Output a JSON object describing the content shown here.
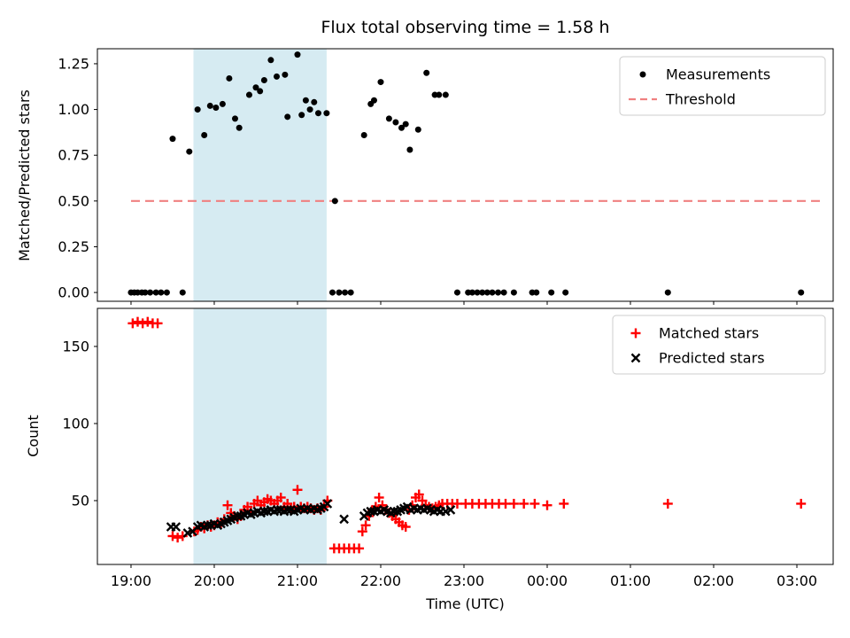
{
  "chart_data": [
    {
      "type": "scatter",
      "title": "Flux total observing time = 1.58 h",
      "ylabel": "Matched/Predicted stars",
      "xlim": [
        18.596,
        27.436
      ],
      "ylim": [
        -0.048,
        1.332
      ],
      "x_ticks": {
        "values": [
          19,
          20,
          21,
          22,
          23,
          24,
          25,
          26,
          27
        ],
        "labels": [
          "19:00",
          "20:00",
          "21:00",
          "22:00",
          "23:00",
          "00:00",
          "01:00",
          "02:00",
          "03:00"
        ],
        "show_labels": false
      },
      "y_ticks": {
        "values": [
          0,
          0.25,
          0.5,
          0.75,
          1.0,
          1.25
        ],
        "labels": [
          "0.00",
          "0.25",
          "0.50",
          "0.75",
          "1.00",
          "1.25"
        ]
      },
      "shaded_region": {
        "x0": 19.75,
        "x1": 21.35,
        "color": "#add8e6",
        "opacity": 0.5
      },
      "threshold": {
        "label": "Threshold",
        "value": 0.5,
        "x0": 19.0,
        "x1": 27.32,
        "color": "#f08080",
        "style": "dashed"
      },
      "legend_position": "upper right",
      "series": [
        {
          "name": "Measurements",
          "marker": "dot",
          "color": "#000000",
          "points": [
            [
              19.0,
              0.0
            ],
            [
              19.04,
              0.0
            ],
            [
              19.08,
              0.0
            ],
            [
              19.13,
              0.0
            ],
            [
              19.17,
              0.0
            ],
            [
              19.23,
              0.0
            ],
            [
              19.3,
              0.0
            ],
            [
              19.36,
              0.0
            ],
            [
              19.43,
              0.0
            ],
            [
              19.62,
              0.0
            ],
            [
              19.5,
              0.84
            ],
            [
              19.7,
              0.77
            ],
            [
              19.8,
              1.0
            ],
            [
              19.88,
              0.86
            ],
            [
              19.95,
              1.02
            ],
            [
              20.02,
              1.01
            ],
            [
              20.1,
              1.03
            ],
            [
              20.18,
              1.17
            ],
            [
              20.25,
              0.95
            ],
            [
              20.3,
              0.9
            ],
            [
              20.42,
              1.08
            ],
            [
              20.5,
              1.12
            ],
            [
              20.55,
              1.1
            ],
            [
              20.6,
              1.16
            ],
            [
              20.68,
              1.27
            ],
            [
              20.75,
              1.18
            ],
            [
              20.85,
              1.19
            ],
            [
              20.88,
              0.96
            ],
            [
              21.0,
              1.3
            ],
            [
              21.05,
              0.97
            ],
            [
              21.1,
              1.05
            ],
            [
              21.15,
              1.0
            ],
            [
              21.2,
              1.04
            ],
            [
              21.25,
              0.98
            ],
            [
              21.35,
              0.98
            ],
            [
              21.45,
              0.5
            ],
            [
              21.42,
              0.0
            ],
            [
              21.5,
              0.0
            ],
            [
              21.57,
              0.0
            ],
            [
              21.64,
              0.0
            ],
            [
              21.8,
              0.86
            ],
            [
              21.88,
              1.03
            ],
            [
              21.92,
              1.05
            ],
            [
              22.0,
              1.15
            ],
            [
              22.1,
              0.95
            ],
            [
              22.18,
              0.93
            ],
            [
              22.25,
              0.9
            ],
            [
              22.3,
              0.92
            ],
            [
              22.35,
              0.78
            ],
            [
              22.45,
              0.89
            ],
            [
              22.55,
              1.2
            ],
            [
              22.65,
              1.08
            ],
            [
              22.7,
              1.08
            ],
            [
              22.78,
              1.08
            ],
            [
              22.92,
              0.0
            ],
            [
              23.05,
              0.0
            ],
            [
              23.1,
              0.0
            ],
            [
              23.16,
              0.0
            ],
            [
              23.22,
              0.0
            ],
            [
              23.28,
              0.0
            ],
            [
              23.34,
              0.0
            ],
            [
              23.41,
              0.0
            ],
            [
              23.48,
              0.0
            ],
            [
              23.6,
              0.0
            ],
            [
              23.82,
              0.0
            ],
            [
              23.87,
              0.0
            ],
            [
              24.05,
              0.0
            ],
            [
              24.22,
              0.0
            ],
            [
              25.45,
              0.0
            ],
            [
              27.05,
              0.0
            ]
          ]
        }
      ]
    },
    {
      "type": "scatter",
      "xlabel": "Time (UTC)",
      "ylabel": "Count",
      "xlim": [
        18.596,
        27.436
      ],
      "ylim": [
        8.6,
        174.7
      ],
      "x_ticks": {
        "values": [
          19,
          20,
          21,
          22,
          23,
          24,
          25,
          26,
          27
        ],
        "labels": [
          "19:00",
          "20:00",
          "21:00",
          "22:00",
          "23:00",
          "00:00",
          "01:00",
          "02:00",
          "03:00"
        ],
        "show_labels": true
      },
      "y_ticks": {
        "values": [
          50,
          100,
          150
        ],
        "labels": [
          "50",
          "100",
          "150"
        ]
      },
      "shaded_region": {
        "x0": 19.75,
        "x1": 21.35,
        "color": "#add8e6",
        "opacity": 0.5
      },
      "legend_position": "upper right",
      "series": [
        {
          "name": "Matched stars",
          "marker": "plus",
          "color": "#ff0000",
          "points": [
            [
              19.02,
              165
            ],
            [
              19.08,
              166
            ],
            [
              19.14,
              165
            ],
            [
              19.2,
              166
            ],
            [
              19.26,
              165
            ],
            [
              19.32,
              165
            ],
            [
              19.5,
              27
            ],
            [
              19.56,
              26
            ],
            [
              19.62,
              27
            ],
            [
              19.76,
              30
            ],
            [
              19.8,
              31
            ],
            [
              19.84,
              33
            ],
            [
              19.88,
              32
            ],
            [
              19.92,
              34
            ],
            [
              19.96,
              33
            ],
            [
              20.0,
              34
            ],
            [
              20.04,
              36
            ],
            [
              20.08,
              35
            ],
            [
              20.12,
              38
            ],
            [
              20.16,
              47
            ],
            [
              20.2,
              42
            ],
            [
              20.24,
              40
            ],
            [
              20.28,
              38
            ],
            [
              20.32,
              40
            ],
            [
              20.36,
              44
            ],
            [
              20.4,
              46
            ],
            [
              20.44,
              43
            ],
            [
              20.48,
              48
            ],
            [
              20.52,
              50
            ],
            [
              20.56,
              47
            ],
            [
              20.6,
              49
            ],
            [
              20.64,
              51
            ],
            [
              20.68,
              50
            ],
            [
              20.72,
              48
            ],
            [
              20.76,
              50
            ],
            [
              20.8,
              52
            ],
            [
              20.84,
              46
            ],
            [
              20.88,
              48
            ],
            [
              20.92,
              45
            ],
            [
              20.96,
              46
            ],
            [
              21.0,
              57
            ],
            [
              21.04,
              46
            ],
            [
              21.08,
              45
            ],
            [
              21.12,
              46
            ],
            [
              21.16,
              45
            ],
            [
              21.2,
              44
            ],
            [
              21.24,
              45
            ],
            [
              21.28,
              44
            ],
            [
              21.32,
              46
            ],
            [
              21.36,
              50
            ],
            [
              21.44,
              19
            ],
            [
              21.5,
              19
            ],
            [
              21.56,
              19
            ],
            [
              21.62,
              19
            ],
            [
              21.68,
              19
            ],
            [
              21.74,
              19
            ],
            [
              21.78,
              30
            ],
            [
              21.82,
              34
            ],
            [
              21.86,
              40
            ],
            [
              21.9,
              44
            ],
            [
              21.94,
              46
            ],
            [
              21.98,
              52
            ],
            [
              22.02,
              47
            ],
            [
              22.06,
              44
            ],
            [
              22.1,
              42
            ],
            [
              22.14,
              40
            ],
            [
              22.18,
              38
            ],
            [
              22.22,
              36
            ],
            [
              22.26,
              34
            ],
            [
              22.3,
              33
            ],
            [
              22.34,
              44
            ],
            [
              22.38,
              47
            ],
            [
              22.42,
              52
            ],
            [
              22.46,
              54
            ],
            [
              22.5,
              50
            ],
            [
              22.54,
              47
            ],
            [
              22.58,
              46
            ],
            [
              22.62,
              45
            ],
            [
              22.66,
              46
            ],
            [
              22.7,
              47
            ],
            [
              22.74,
              48
            ],
            [
              22.8,
              48
            ],
            [
              22.86,
              48
            ],
            [
              22.92,
              48
            ],
            [
              23.02,
              48
            ],
            [
              23.1,
              48
            ],
            [
              23.18,
              48
            ],
            [
              23.26,
              48
            ],
            [
              23.34,
              48
            ],
            [
              23.42,
              48
            ],
            [
              23.5,
              48
            ],
            [
              23.6,
              48
            ],
            [
              23.72,
              48
            ],
            [
              23.85,
              48
            ],
            [
              24.0,
              47
            ],
            [
              24.2,
              48
            ],
            [
              25.45,
              48
            ],
            [
              27.05,
              48
            ]
          ]
        },
        {
          "name": "Predicted stars",
          "marker": "x",
          "color": "#000000",
          "points": [
            [
              19.48,
              33
            ],
            [
              19.54,
              33
            ],
            [
              19.68,
              29
            ],
            [
              19.74,
              30
            ],
            [
              19.8,
              33
            ],
            [
              19.84,
              34
            ],
            [
              19.88,
              33
            ],
            [
              19.92,
              34
            ],
            [
              19.96,
              34
            ],
            [
              20.0,
              35
            ],
            [
              20.04,
              34
            ],
            [
              20.08,
              35
            ],
            [
              20.12,
              36
            ],
            [
              20.16,
              37
            ],
            [
              20.2,
              38
            ],
            [
              20.24,
              39
            ],
            [
              20.28,
              40
            ],
            [
              20.32,
              40
            ],
            [
              20.36,
              41
            ],
            [
              20.4,
              42
            ],
            [
              20.44,
              41
            ],
            [
              20.48,
              42
            ],
            [
              20.52,
              43
            ],
            [
              20.56,
              42
            ],
            [
              20.6,
              43
            ],
            [
              20.64,
              43
            ],
            [
              20.68,
              44
            ],
            [
              20.72,
              43
            ],
            [
              20.76,
              44
            ],
            [
              20.8,
              44
            ],
            [
              20.84,
              43
            ],
            [
              20.88,
              44
            ],
            [
              20.92,
              44
            ],
            [
              20.96,
              43
            ],
            [
              21.0,
              44
            ],
            [
              21.04,
              45
            ],
            [
              21.08,
              44
            ],
            [
              21.12,
              45
            ],
            [
              21.16,
              44
            ],
            [
              21.2,
              45
            ],
            [
              21.24,
              44
            ],
            [
              21.28,
              45
            ],
            [
              21.32,
              46
            ],
            [
              21.36,
              48
            ],
            [
              21.56,
              38
            ],
            [
              21.8,
              40
            ],
            [
              21.84,
              42
            ],
            [
              21.88,
              43
            ],
            [
              21.92,
              43
            ],
            [
              21.96,
              44
            ],
            [
              22.0,
              43
            ],
            [
              22.04,
              44
            ],
            [
              22.08,
              43
            ],
            [
              22.12,
              42
            ],
            [
              22.16,
              43
            ],
            [
              22.2,
              43
            ],
            [
              22.24,
              44
            ],
            [
              22.28,
              45
            ],
            [
              22.32,
              46
            ],
            [
              22.36,
              44
            ],
            [
              22.4,
              45
            ],
            [
              22.44,
              44
            ],
            [
              22.48,
              45
            ],
            [
              22.52,
              44
            ],
            [
              22.56,
              45
            ],
            [
              22.6,
              44
            ],
            [
              22.64,
              43
            ],
            [
              22.68,
              44
            ],
            [
              22.72,
              43
            ],
            [
              22.78,
              43
            ],
            [
              22.84,
              44
            ]
          ]
        }
      ]
    }
  ]
}
